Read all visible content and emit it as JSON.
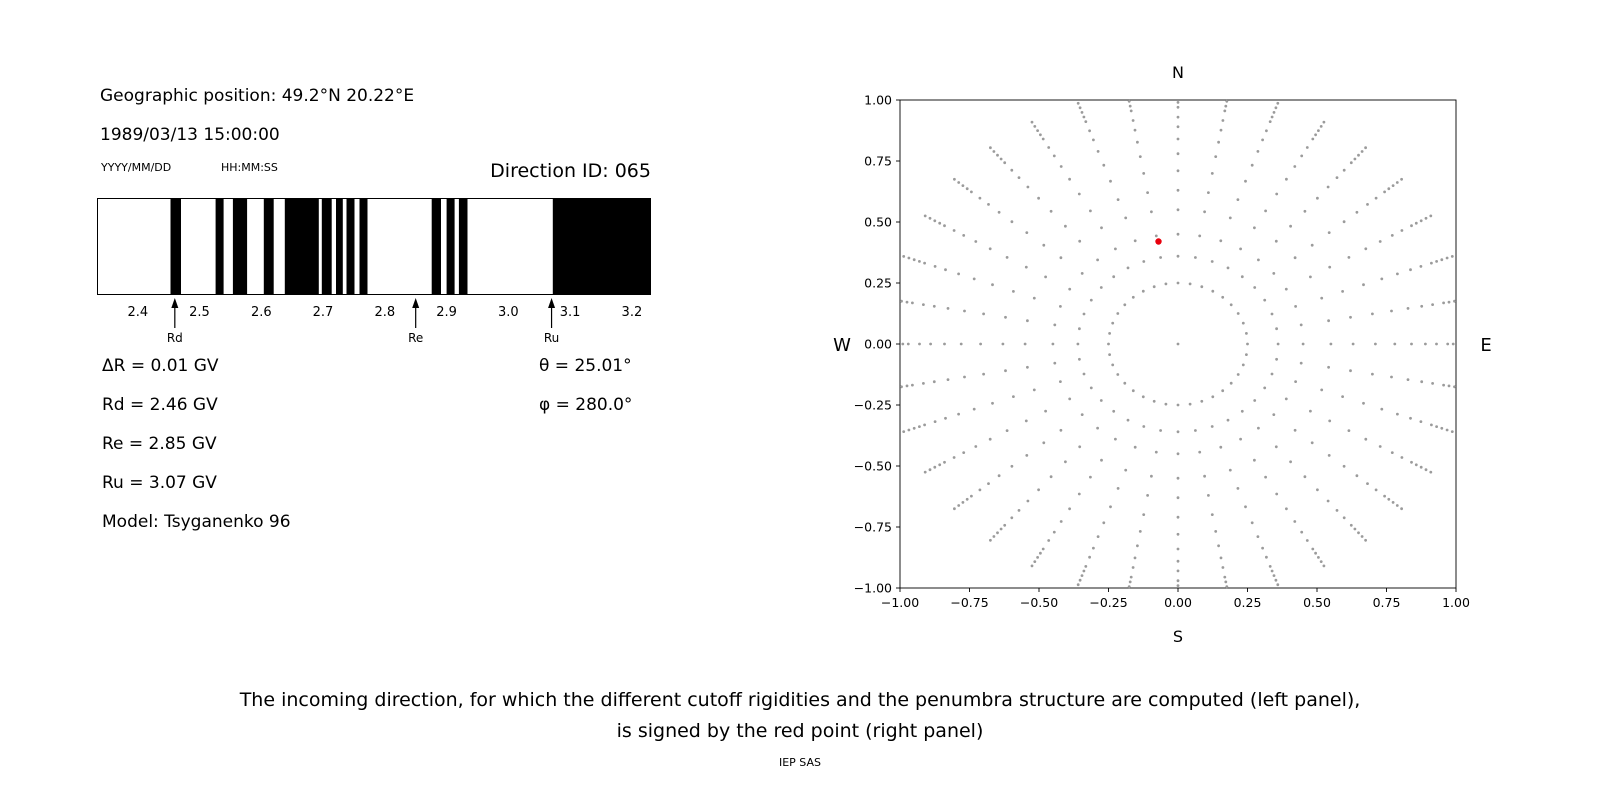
{
  "left_panel": {
    "geographic_position": "Geographic position: 49.2°N 20.22°E",
    "datetime": "1989/03/13 15:00:00",
    "date_format": "YYYY/MM/DD",
    "time_format": "HH:MM:SS",
    "direction_id": "Direction ID: 065",
    "params": [
      "ΔR = 0.01 GV",
      "Rd = 2.46 GV",
      "Re = 2.85 GV",
      "Ru = 3.07 GV",
      "Model: Tsyganenko 96"
    ],
    "theta": "θ = 25.01°",
    "phi": "φ = 280.0°"
  },
  "right_panel": {
    "compass": {
      "north": "N",
      "south": "S",
      "west": "W",
      "east": "E"
    }
  },
  "caption": {
    "line1": "The incoming direction, for which the different cutoff rigidities and the penumbra structure are computed (left panel),",
    "line2": "is signed by the red point (right panel)",
    "credit": "IEP SAS"
  },
  "chart_data": [
    {
      "type": "bar",
      "subtype": "penumbra-allowed-rigidity-bands",
      "title": "Direction ID: 065",
      "x_range_gv": [
        2.334,
        3.231
      ],
      "x_tick_values": [
        2.4,
        2.5,
        2.6,
        2.7,
        2.8,
        2.9,
        3.0,
        3.1,
        3.2
      ],
      "x_tick_labels": [
        "2.4",
        "2.5",
        "2.6",
        "2.7",
        "2.8",
        "2.9",
        "3.0",
        "3.1",
        "3.2"
      ],
      "allowed_bands_gv": [
        [
          2.453,
          2.47
        ],
        [
          2.526,
          2.539
        ],
        [
          2.554,
          2.577
        ],
        [
          2.604,
          2.62
        ],
        [
          2.638,
          2.693
        ],
        [
          2.698,
          2.714
        ],
        [
          2.721,
          2.732
        ],
        [
          2.738,
          2.751
        ],
        [
          2.759,
          2.772
        ],
        [
          2.876,
          2.891
        ],
        [
          2.9,
          2.913
        ],
        [
          2.92,
          2.934
        ],
        [
          3.072,
          3.231
        ]
      ],
      "markers": [
        {
          "label": "Rd",
          "value_gv": 2.46
        },
        {
          "label": "Re",
          "value_gv": 2.85
        },
        {
          "label": "Ru",
          "value_gv": 3.07
        }
      ],
      "band_color": "#000000",
      "background_color": "#ffffff"
    },
    {
      "type": "scatter",
      "subtype": "incoming-direction-grid",
      "xlim": [
        -1,
        1
      ],
      "ylim": [
        -1,
        1
      ],
      "tick_values": [
        -1,
        -0.75,
        -0.5,
        -0.25,
        0,
        0.25,
        0.5,
        0.75,
        1
      ],
      "tick_labels": [
        "−1.00",
        "−0.75",
        "−0.50",
        "−0.25",
        "0.00",
        "0.25",
        "0.50",
        "0.75",
        "1.00"
      ],
      "compass": {
        "top": "N",
        "bottom": "S",
        "left": "W",
        "right": "E"
      },
      "grid_on": false,
      "grid_dots": {
        "color": "#9b9b9b",
        "azimuth_step_deg": 10,
        "center_dot": true,
        "ring_radius": 0.25,
        "spoke_radii": [
          0.36,
          0.45,
          0.55,
          0.63,
          0.71,
          0.78,
          0.84,
          0.89,
          0.93,
          0.97,
          0.99,
          1.01,
          1.03,
          1.05
        ]
      },
      "red_point": {
        "x": -0.07,
        "y": 0.42,
        "color": "#e8000d"
      }
    }
  ]
}
